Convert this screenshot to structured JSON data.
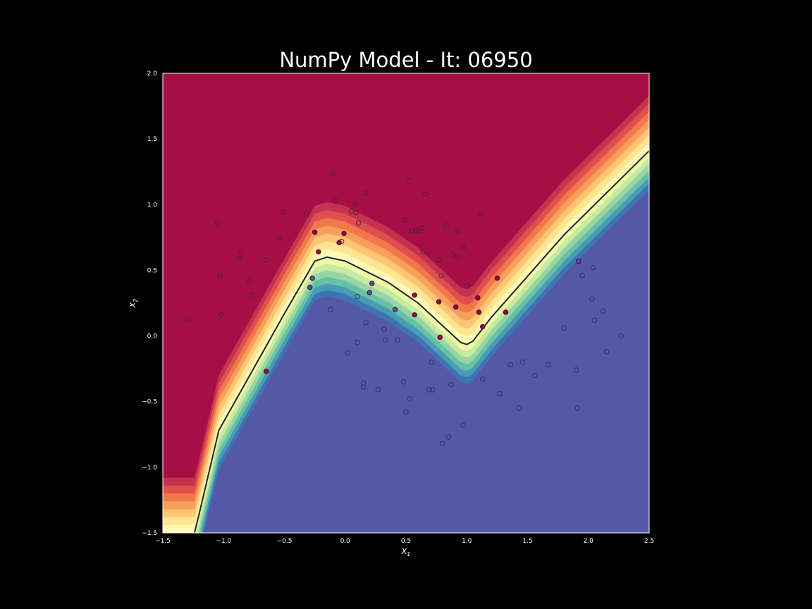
{
  "chart_data": {
    "type": "scatter",
    "title": "NumPy Model - It: 06950",
    "xlabel": "$X_1$",
    "ylabel": "$X_2$",
    "xlim": [
      -1.5,
      2.5
    ],
    "ylim": [
      -1.5,
      2.0
    ],
    "xticks": [
      "−1.5",
      "−1.0",
      "−0.5",
      "0.0",
      "0.5",
      "1.0",
      "1.5",
      "2.0",
      "2.5"
    ],
    "yticks": [
      "−1.5",
      "−1.0",
      "−0.5",
      "0.0",
      "0.5",
      "1.0",
      "1.5",
      "2.0"
    ],
    "grid": false,
    "background": "decision-surface",
    "colormap": "Spectral",
    "colors": {
      "figure_bg": "#000000",
      "class_red": "#a50f46",
      "class_blue": "#5458a6",
      "train_red": "#9e0142",
      "train_blue": "#5e4fa2",
      "test_fill": "#2e1535",
      "boundary": "#222222",
      "text": "#ffffff"
    },
    "decision_boundary": [
      [
        -1.24,
        -1.5
      ],
      [
        -1.2,
        -1.35
      ],
      [
        -1.04,
        -0.72
      ],
      [
        -0.5,
        0.17
      ],
      [
        -0.25,
        0.57
      ],
      [
        -0.15,
        0.6
      ],
      [
        0.0,
        0.57
      ],
      [
        0.35,
        0.41
      ],
      [
        0.6,
        0.25
      ],
      [
        0.95,
        -0.05
      ],
      [
        1.0,
        -0.065
      ],
      [
        1.05,
        -0.04
      ],
      [
        1.2,
        0.14
      ],
      [
        1.8,
        0.77
      ],
      [
        2.5,
        1.41
      ]
    ],
    "series": [
      {
        "role": "train",
        "class": 0,
        "x": [
          -0.65,
          -0.22,
          -0.05,
          -0.01,
          -0.25,
          0.57,
          0.57,
          0.77,
          0.91,
          1.1,
          1.13,
          1.25,
          1.32,
          1.09,
          0.78
        ],
        "y": [
          -0.27,
          0.64,
          0.71,
          0.78,
          0.79,
          0.16,
          0.31,
          0.26,
          0.22,
          0.18,
          0.07,
          0.44,
          0.18,
          0.29,
          -0.01
        ]
      },
      {
        "role": "train",
        "class": 1,
        "x": [
          -0.27,
          -0.29,
          0.2,
          0.22,
          0.41,
          1.92
        ],
        "y": [
          0.44,
          0.37,
          0.33,
          0.4,
          0.2,
          0.57
        ]
      },
      {
        "role": "test",
        "class": 0,
        "x": [
          -1.3,
          -1.03,
          -1.02,
          -1.05,
          -0.86,
          -0.87,
          -0.79,
          -0.77,
          -0.65,
          -0.51,
          -0.54,
          -0.32,
          -0.1,
          -0.08,
          -0.03,
          0.05,
          0.08,
          0.09,
          0.11,
          0.17,
          0.49,
          0.53,
          0.55,
          0.58,
          0.61,
          0.63,
          0.64,
          0.66,
          0.77,
          0.79,
          0.83,
          0.88,
          0.92,
          0.93,
          0.97,
          1.11,
          1.0
        ],
        "y": [
          0.13,
          0.46,
          0.16,
          0.86,
          0.64,
          0.59,
          0.42,
          0.31,
          0.58,
          0.94,
          0.75,
          0.93,
          1.24,
          1.03,
          0.72,
          0.95,
          1.0,
          0.94,
          0.86,
          1.09,
          0.88,
          1.18,
          0.8,
          0.8,
          0.8,
          0.82,
          0.64,
          1.08,
          0.58,
          0.46,
          0.84,
          0.62,
          0.6,
          0.8,
          0.67,
          0.93,
          0.38
        ]
      },
      {
        "role": "test",
        "class": 1,
        "x": [
          -0.12,
          0.02,
          0.1,
          0.1,
          0.15,
          0.15,
          0.17,
          0.27,
          0.32,
          0.33,
          0.43,
          0.48,
          0.5,
          0.53,
          0.69,
          0.71,
          0.72,
          0.87,
          0.8,
          0.85,
          0.97,
          1.13,
          1.27,
          1.36,
          1.46,
          1.43,
          1.56,
          1.67,
          1.8,
          1.9,
          1.91,
          1.95,
          2.03,
          2.04,
          2.05,
          2.12,
          2.15,
          2.27
        ],
        "y": [
          0.2,
          -0.13,
          0.3,
          -0.05,
          -0.36,
          -0.39,
          0.1,
          -0.41,
          0.05,
          -0.03,
          -0.03,
          -0.35,
          -0.58,
          -0.48,
          -0.41,
          -0.2,
          -0.41,
          -0.37,
          -0.82,
          -0.77,
          -0.68,
          -0.33,
          -0.44,
          -0.22,
          -0.2,
          -0.55,
          -0.3,
          -0.22,
          0.06,
          -0.26,
          -0.55,
          0.46,
          0.28,
          0.52,
          0.12,
          0.19,
          -0.12,
          0.0
        ]
      }
    ]
  }
}
